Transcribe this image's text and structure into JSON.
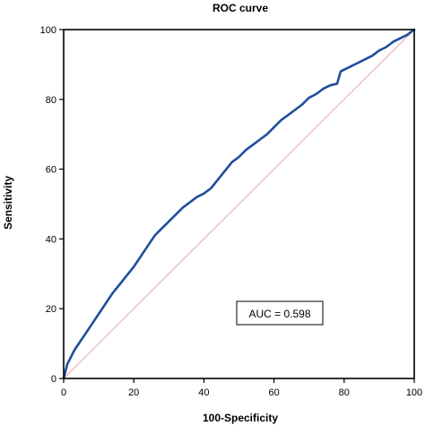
{
  "chart_data": {
    "type": "line",
    "title": "ROC curve",
    "xlabel": "100-Specificity",
    "ylabel": "Sensitivity",
    "xlim": [
      0,
      100
    ],
    "ylim": [
      0,
      100
    ],
    "xticks": [
      0,
      20,
      40,
      60,
      80,
      100
    ],
    "yticks": [
      0,
      20,
      40,
      60,
      80,
      100
    ],
    "xtick_labels": [
      "0",
      "20",
      "40",
      "60",
      "80",
      "100"
    ],
    "ytick_labels": [
      "0",
      "20",
      "40",
      "60",
      "80",
      "100"
    ],
    "grid": false,
    "annotation": "AUC = 0.598",
    "series": [
      {
        "color": "#1f4e9c",
        "x": [
          0,
          0.5,
          1,
          2,
          3,
          4,
          5,
          6,
          8,
          10,
          12,
          14,
          16,
          18,
          20,
          22,
          24,
          25,
          26,
          27,
          28,
          30,
          32,
          34,
          36,
          38,
          40,
          42,
          44,
          46,
          48,
          50,
          52,
          54,
          56,
          58,
          60,
          62,
          64,
          66,
          68,
          70,
          72,
          74,
          76,
          78,
          79,
          80,
          82,
          84,
          86,
          88,
          90,
          92,
          94,
          96,
          98,
          100
        ],
        "y": [
          0,
          2,
          4,
          6,
          8,
          9.5,
          11,
          12.5,
          15.5,
          18.5,
          21.5,
          24.5,
          27,
          29.5,
          32,
          35,
          38,
          39.5,
          41,
          42,
          43,
          45,
          47,
          49,
          50.5,
          52,
          53,
          54.5,
          57,
          59.5,
          62,
          63.5,
          65.5,
          67,
          68.5,
          70,
          72,
          74,
          75.5,
          77,
          78.5,
          80.5,
          81.5,
          83,
          84,
          84.5,
          88,
          88.5,
          89.5,
          90.5,
          91.5,
          92.5,
          94,
          95,
          96.5,
          97.5,
          98.5,
          100
        ]
      },
      {
        "color": "#e8a6a6",
        "x": [
          0,
          100
        ],
        "y": [
          0,
          100
        ]
      }
    ]
  }
}
